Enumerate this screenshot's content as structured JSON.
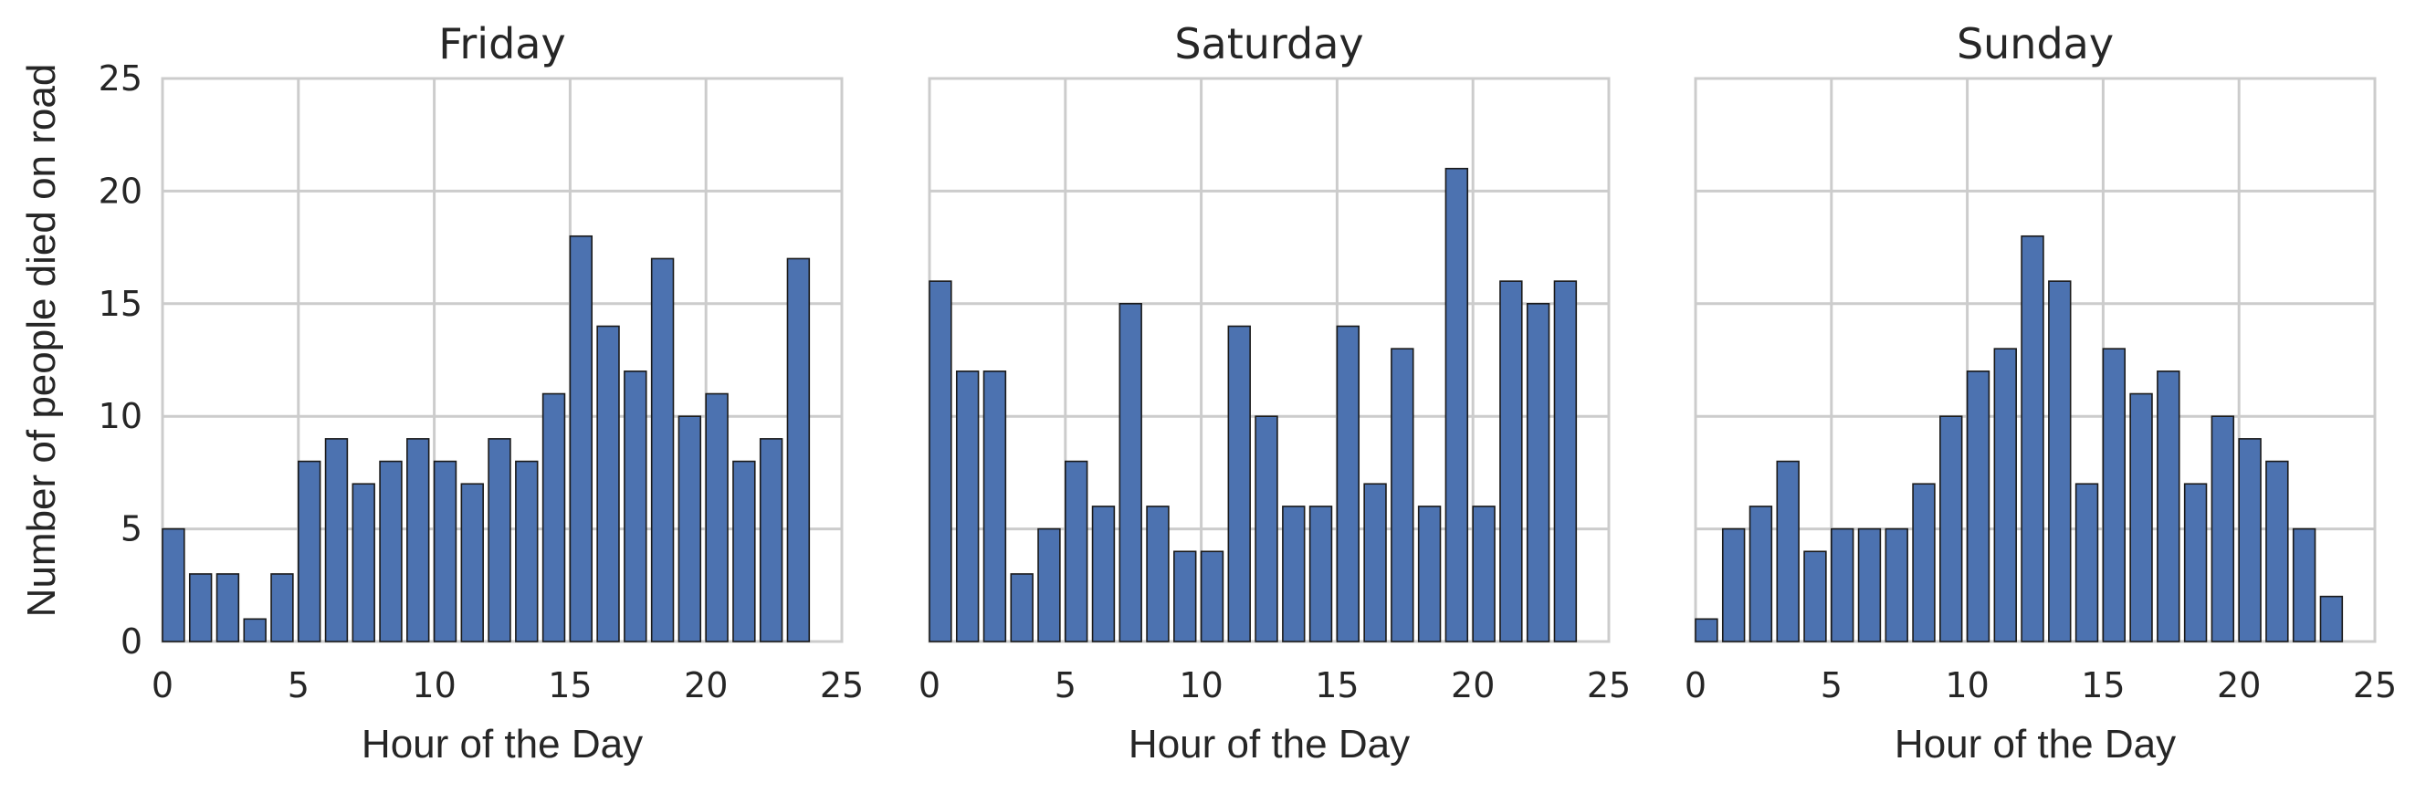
{
  "chart_data": [
    {
      "type": "bar",
      "title": "Friday",
      "xlabel": "Hour of the Day",
      "ylabel": "Number of people died on road",
      "x": [
        0,
        1,
        2,
        3,
        4,
        5,
        6,
        7,
        8,
        9,
        10,
        11,
        12,
        13,
        14,
        15,
        16,
        17,
        18,
        19,
        20,
        21,
        22,
        23
      ],
      "values": [
        5,
        3,
        3,
        1,
        3,
        8,
        9,
        7,
        8,
        9,
        8,
        7,
        9,
        8,
        11,
        18,
        14,
        12,
        17,
        10,
        11,
        8,
        9,
        17
      ],
      "xlim": [
        0,
        25
      ],
      "ylim": [
        0,
        25
      ],
      "xticks": [
        0,
        5,
        10,
        15,
        20,
        25
      ],
      "yticks": [
        0,
        5,
        10,
        15,
        20,
        25
      ],
      "grid": true,
      "bar_color": "#4c72b0"
    },
    {
      "type": "bar",
      "title": "Saturday",
      "xlabel": "Hour of the Day",
      "ylabel": "",
      "x": [
        0,
        1,
        2,
        3,
        4,
        5,
        6,
        7,
        8,
        9,
        10,
        11,
        12,
        13,
        14,
        15,
        16,
        17,
        18,
        19,
        20,
        21,
        22,
        23
      ],
      "values": [
        16,
        12,
        12,
        3,
        5,
        8,
        6,
        15,
        6,
        4,
        4,
        14,
        10,
        6,
        6,
        14,
        7,
        13,
        6,
        21,
        6,
        16,
        15,
        16
      ],
      "xlim": [
        0,
        25
      ],
      "ylim": [
        0,
        25
      ],
      "xticks": [
        0,
        5,
        10,
        15,
        20,
        25
      ],
      "yticks": [],
      "grid": true,
      "bar_color": "#4c72b0"
    },
    {
      "type": "bar",
      "title": "Sunday",
      "xlabel": "Hour of the Day",
      "ylabel": "",
      "x": [
        0,
        1,
        2,
        3,
        4,
        5,
        6,
        7,
        8,
        9,
        10,
        11,
        12,
        13,
        14,
        15,
        16,
        17,
        18,
        19,
        20,
        21,
        22,
        23
      ],
      "values": [
        1,
        5,
        6,
        8,
        4,
        5,
        5,
        5,
        7,
        10,
        12,
        13,
        18,
        16,
        7,
        13,
        11,
        12,
        7,
        10,
        9,
        8,
        5,
        2
      ],
      "xlim": [
        0,
        25
      ],
      "ylim": [
        0,
        25
      ],
      "xticks": [
        0,
        5,
        10,
        15,
        20,
        25
      ],
      "yticks": [],
      "grid": true,
      "bar_color": "#4c72b0"
    }
  ]
}
